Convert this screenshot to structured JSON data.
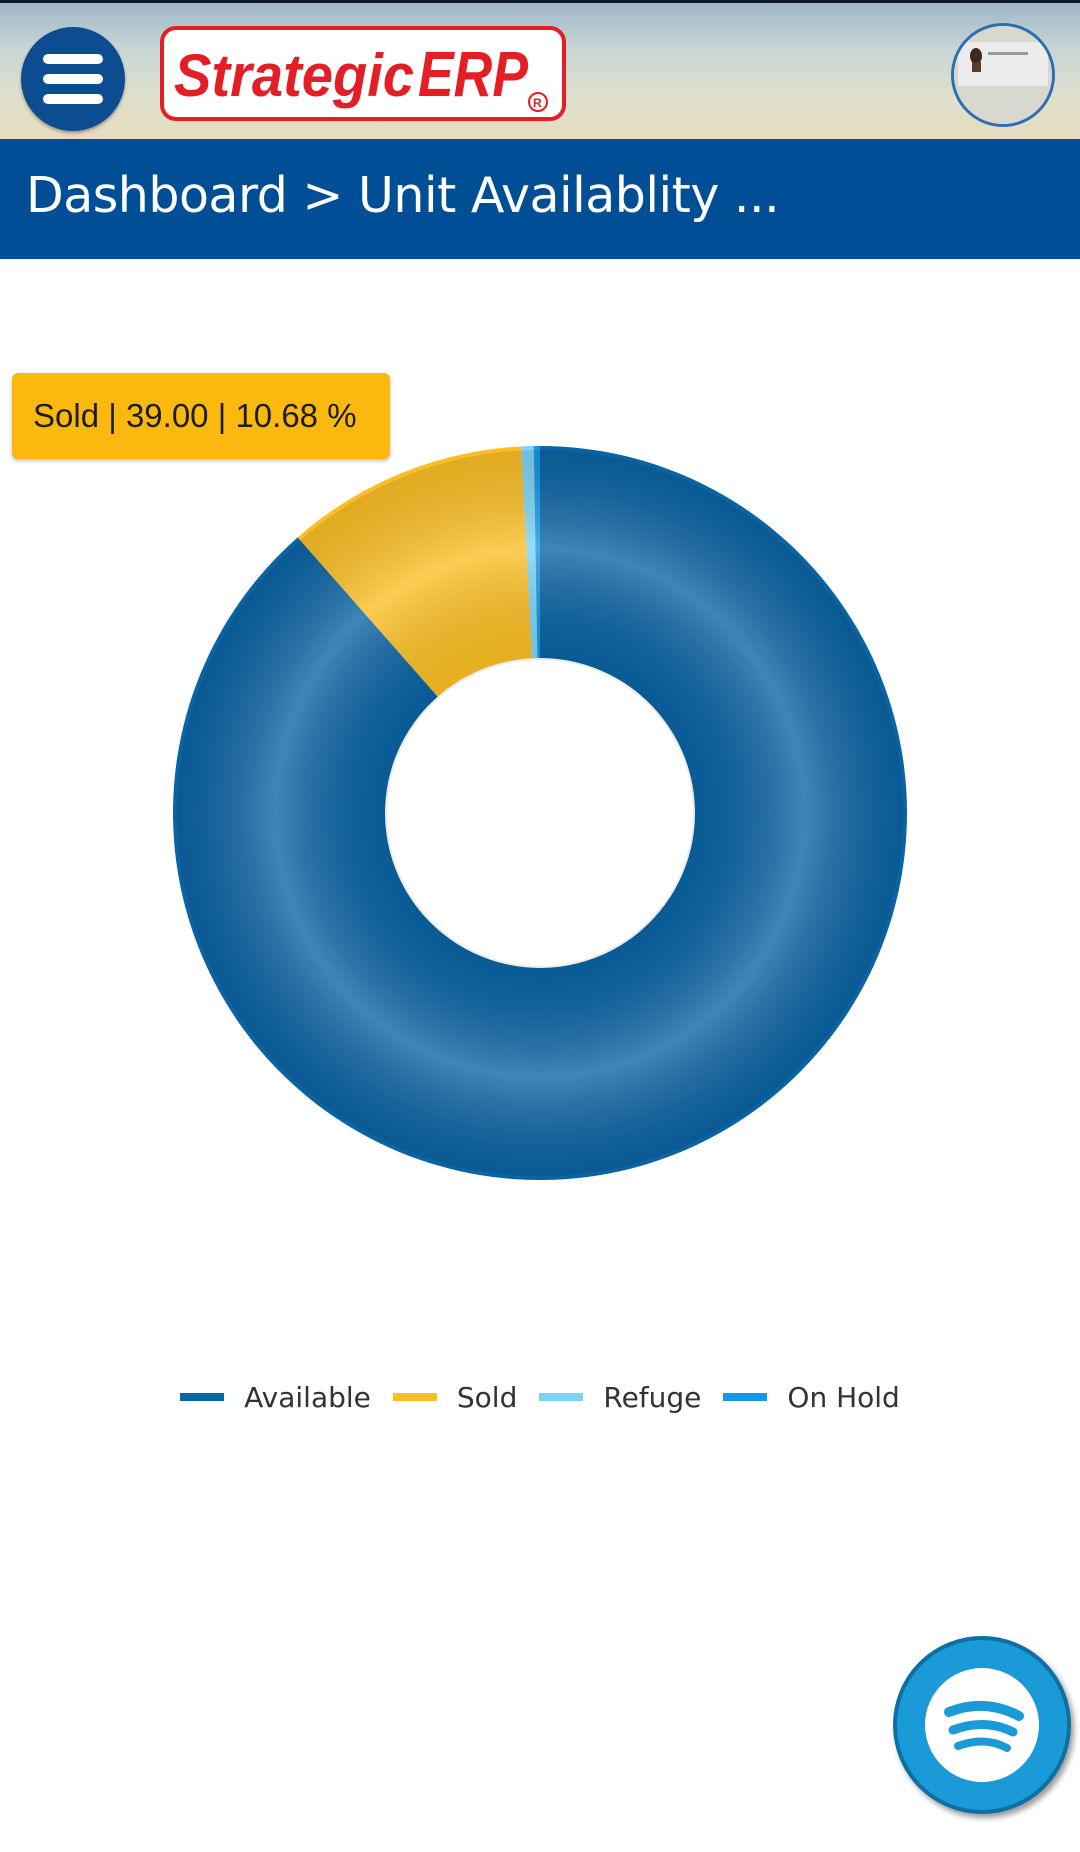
{
  "header": {
    "logo_text": "StrategicERP",
    "logo_part1": "Strategic",
    "logo_part2": "ERP",
    "brand_color": "#e31e24"
  },
  "breadcrumb": {
    "text": "Dashboard > Unit Availablity ..."
  },
  "tooltip": {
    "text": "Sold | 39.00 | 10.68 %"
  },
  "chart_data": {
    "type": "pie",
    "variant": "donut",
    "title": "",
    "categories": [
      "Available",
      "Sold",
      "Refuge",
      "On Hold"
    ],
    "values": [
      324,
      39,
      2,
      1
    ],
    "colors": [
      "#0a63a3",
      "#fbbf24",
      "#7dd3f5",
      "#1596e6"
    ],
    "legend_position": "bottom"
  },
  "legend": {
    "items": [
      {
        "label": "Available",
        "color": "#0a63a3"
      },
      {
        "label": "Sold",
        "color": "#fbbf24"
      },
      {
        "label": "Refuge",
        "color": "#7dd3f5"
      },
      {
        "label": "On Hold",
        "color": "#1596e6"
      }
    ]
  },
  "icons": {
    "menu": "hamburger-menu-icon",
    "avatar": "user-avatar",
    "fab": "spotify-icon"
  }
}
